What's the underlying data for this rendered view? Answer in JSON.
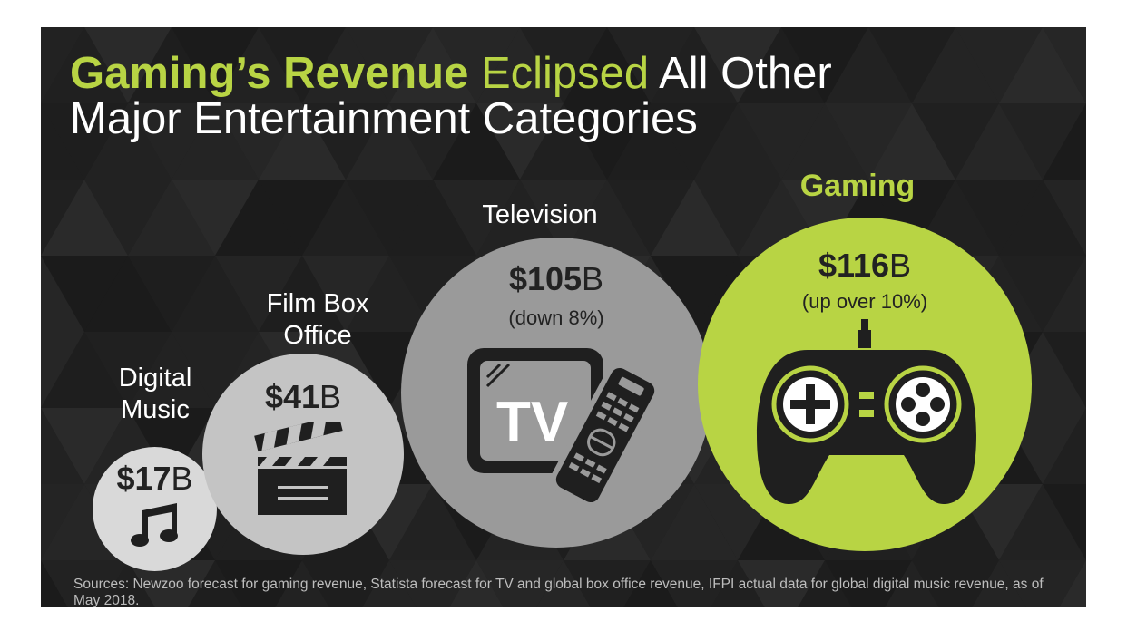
{
  "title": {
    "part1": "Gaming’s Revenue",
    "part2": "Eclipsed",
    "part3": "All Other",
    "line2": "Major Entertainment Categories"
  },
  "colors": {
    "background": "#1f1f1f",
    "accent_green": "#b8d444",
    "music_circle": "#d9d9d9",
    "film_circle": "#c4c4c4",
    "tv_circle": "#9a9a9a",
    "gaming_circle": "#b8d444",
    "icon_dark": "#1f1f1f"
  },
  "chart_data": {
    "type": "bubble",
    "title": "Gaming’s Revenue Eclipsed All Other Major Entertainment Categories",
    "unit": "B",
    "categories": [
      "Digital Music",
      "Film Box Office",
      "Television",
      "Gaming"
    ],
    "values": [
      17,
      41,
      105,
      116
    ],
    "items": [
      {
        "label_lines": [
          "Digital",
          "Music"
        ],
        "value_num": "$17",
        "value_unit": "B",
        "note": "",
        "icon": "music-note-icon"
      },
      {
        "label_lines": [
          "Film Box",
          "Office"
        ],
        "value_num": "$41",
        "value_unit": "B",
        "note": "",
        "icon": "clapperboard-icon"
      },
      {
        "label_lines": [
          "Television"
        ],
        "value_num": "$105",
        "value_unit": "B",
        "note": "(down 8%)",
        "icon": "tv-remote-icon",
        "tv_text": "TV"
      },
      {
        "label_lines": [
          "Gaming"
        ],
        "value_num": "$116",
        "value_unit": "B",
        "note": "(up over 10%)",
        "icon": "game-controller-icon"
      }
    ]
  },
  "sources": "Sources: Newzoo forecast for gaming revenue, Statista forecast for TV and global box office revenue, IFPI actual data for global digital music revenue, as of May 2018."
}
